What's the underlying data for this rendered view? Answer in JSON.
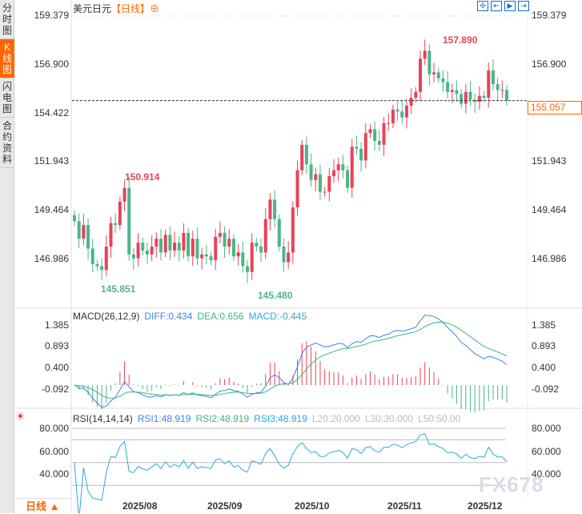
{
  "side_tabs": [
    {
      "label": "分时图",
      "active": false
    },
    {
      "label": "K线图",
      "active": true
    },
    {
      "label": "闪电图",
      "active": false
    },
    {
      "label": "合约资料",
      "active": false
    }
  ],
  "header": {
    "symbol": "美元日元",
    "period_bracket": "【日线】",
    "add_icon": "circle-plus-icon"
  },
  "toolbar_icons": [
    "crosshair-icon",
    "zoom-range-icon",
    "play-icon",
    "scroll-end-icon"
  ],
  "current_price": "155.057",
  "annotations": {
    "high1": "150.914",
    "low1": "145.851",
    "low2": "145.480",
    "high2": "157.890"
  },
  "macd_label": {
    "name": "MACD(26,12,9)",
    "diff": "DIFF:0.434",
    "dea": "DEA:0.656",
    "macd": "MACD:-0.445"
  },
  "rsi_label": {
    "name": "RSI(14,14,14)",
    "rsi1": "RSI1:48.919",
    "rsi2": "RSI2:48.919",
    "rsi3": "RSI3:48.919",
    "l20": "L20:20.000",
    "l30": "L30:30.000",
    "l50": "L50:50.00"
  },
  "period_selector": "日线 ▲",
  "watermark": "FX678",
  "colors": {
    "up": "#e84356",
    "down": "#4cb587",
    "diff": "#3a86e8",
    "dea": "#3cb878",
    "rsi": "#2aa9e0",
    "accent": "#ff6600"
  },
  "chart_data": {
    "type": "candlestick",
    "price_ticks": [
      "159.379",
      "156.900",
      "154.422",
      "151.943",
      "149.464",
      "146.986"
    ],
    "ylim": [
      146.986,
      159.379
    ],
    "macd_ticks": [
      "1.385",
      "0.893",
      "0.400",
      "-0.092"
    ],
    "macd_ylim": [
      -0.092,
      1.385
    ],
    "rsi_ticks": [
      "80.000",
      "60.000",
      "40.000"
    ],
    "rsi_lines": [
      80,
      70,
      50,
      30
    ],
    "x_ticks": [
      "2025/08",
      "2025/09",
      "2025/10",
      "2025/11",
      "2025/12"
    ],
    "closes": [
      148.9,
      148.0,
      148.7,
      147.5,
      146.7,
      146.6,
      146.4,
      147.6,
      148.8,
      148.7,
      149.9,
      150.6,
      147.2,
      147.0,
      147.8,
      147.4,
      147.2,
      147.6,
      148.0,
      147.3,
      148.2,
      147.4,
      147.8,
      147.4,
      148.3,
      147.1,
      148.0,
      147.0,
      147.2,
      147.1,
      146.9,
      148.1,
      148.3,
      147.6,
      148.0,
      147.1,
      147.3,
      146.6,
      146.3,
      147.8,
      147.6,
      147.3,
      149.0,
      150.0,
      149.0,
      147.6,
      146.8,
      147.3,
      149.6,
      151.5,
      152.8,
      151.8,
      151.0,
      151.3,
      150.4,
      150.4,
      151.2,
      151.5,
      151.8,
      151.5,
      150.6,
      152.7,
      152.6,
      152.0,
      153.4,
      153.6,
      153.0,
      152.8,
      153.9,
      153.9,
      154.6,
      154.5,
      154.2,
      154.8,
      155.2,
      155.5,
      157.2,
      157.6,
      156.4,
      156.5,
      156.2,
      156.0,
      155.5,
      155.6,
      155.4,
      154.9,
      155.5,
      155.1,
      155.0,
      155.3,
      155.2,
      156.6,
      155.9,
      155.6,
      155.6,
      155.06
    ]
  }
}
